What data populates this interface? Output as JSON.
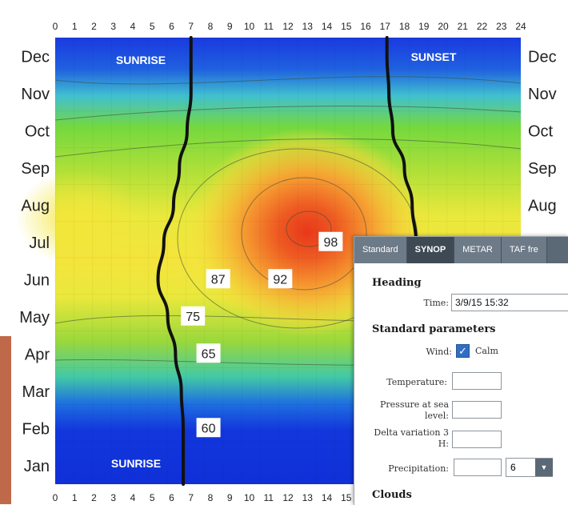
{
  "chart_data": {
    "type": "heatmap",
    "title": "",
    "xlabel": "",
    "ylabel": "",
    "x_ticks": [
      0,
      1,
      2,
      3,
      4,
      5,
      6,
      7,
      8,
      9,
      10,
      11,
      12,
      13,
      14,
      15,
      16,
      17,
      18,
      19,
      20,
      21,
      22,
      23,
      24
    ],
    "x_ticks_bottom_visible": [
      0,
      1,
      2,
      3,
      4,
      5,
      6,
      7,
      8,
      9,
      10,
      11,
      12,
      13,
      14,
      15
    ],
    "xlim": [
      0,
      24
    ],
    "y_categories": [
      "Jan",
      "Feb",
      "Mar",
      "Apr",
      "May",
      "Jun",
      "Jul",
      "Aug",
      "Sep",
      "Oct",
      "Nov",
      "Dec"
    ],
    "contour_labels": [
      {
        "value": "98",
        "hour": 14.2,
        "month": "Jul"
      },
      {
        "value": "92",
        "hour": 11.6,
        "month": "Jun"
      },
      {
        "value": "87",
        "hour": 8.4,
        "month": "Jun"
      },
      {
        "value": "75",
        "hour": 7.1,
        "month": "May"
      },
      {
        "value": "65",
        "hour": 7.9,
        "month": "Apr"
      },
      {
        "value": "60",
        "hour": 7.9,
        "month": "Feb"
      }
    ],
    "sunrise_curve": [
      [
        6.6,
        "Jan"
      ],
      [
        6.6,
        "Feb"
      ],
      [
        6.5,
        "Mar"
      ],
      [
        6.2,
        "Apr"
      ],
      [
        5.8,
        "May"
      ],
      [
        5.3,
        "Jun"
      ],
      [
        5.6,
        "Jul"
      ],
      [
        6.1,
        "Aug"
      ],
      [
        6.4,
        "Sep"
      ],
      [
        6.8,
        "Oct"
      ],
      [
        7.0,
        "Nov"
      ],
      [
        7.0,
        "Dec"
      ]
    ],
    "sunset_curve": [
      [
        17.1,
        "Dec"
      ],
      [
        17.2,
        "Nov"
      ],
      [
        17.4,
        "Oct"
      ],
      [
        18.0,
        "Sep"
      ],
      [
        18.4,
        "Aug"
      ],
      [
        18.6,
        "Jul"
      ]
    ],
    "annotations": [
      "SUNRISE",
      "SUNSET",
      "SUNRISE"
    ],
    "colors": {
      "low": "#1030d8",
      "mid": "#58d63a",
      "high": "#f4e43a",
      "peak": "#e03a1c"
    }
  },
  "panel": {
    "tabs": [
      "Standard",
      "SYNOP",
      "METAR",
      "TAF fre"
    ],
    "active_tab": "SYNOP",
    "heading": "Heading",
    "time_label": "Time:",
    "time_value": "3/9/15 15:32",
    "standard_parameters": "Standard parameters",
    "wind_label": "Wind:",
    "calm_label": "Calm",
    "wind_calm_checked": true,
    "temperature_label": "Temperature:",
    "pressure_label_1": "Pressure at sea",
    "pressure_label_2": "level:",
    "delta_label_1": "Delta variation 3",
    "delta_label_2": "H:",
    "precipitation_label": "Precipitation:",
    "precipitation_select": "6",
    "clouds": "Clouds"
  }
}
